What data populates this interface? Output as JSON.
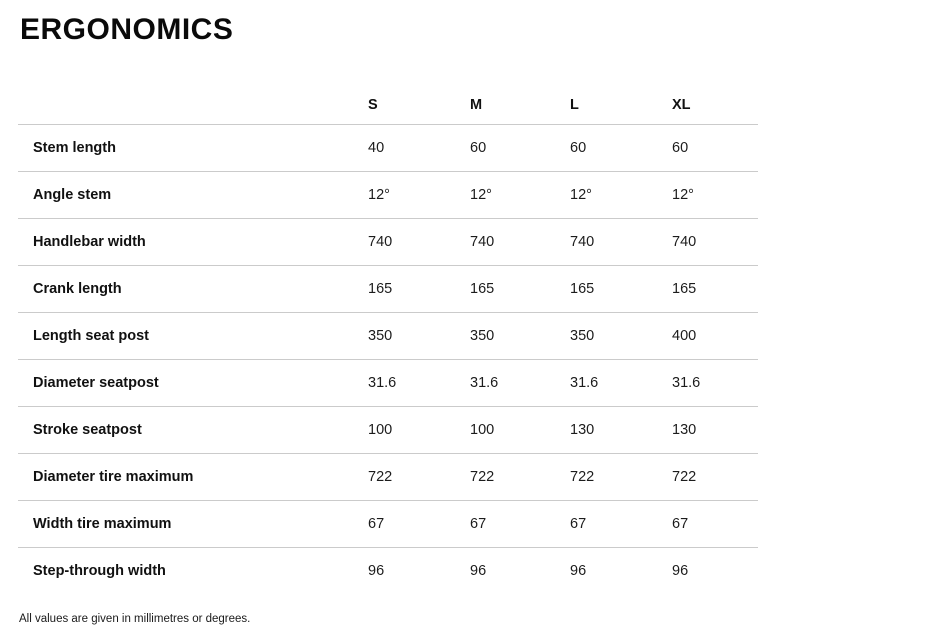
{
  "page": {
    "title": "ERGONOMICS",
    "footnote": "All values are given in millimetres or degrees."
  },
  "table": {
    "size_headers": [
      "S",
      "M",
      "L",
      "XL"
    ],
    "rows": [
      {
        "label": "Stem length",
        "values": [
          "40",
          "60",
          "60",
          "60"
        ]
      },
      {
        "label": "Angle stem",
        "values": [
          "12°",
          "12°",
          "12°",
          "12°"
        ]
      },
      {
        "label": "Handlebar width",
        "values": [
          "740",
          "740",
          "740",
          "740"
        ]
      },
      {
        "label": "Crank length",
        "values": [
          "165",
          "165",
          "165",
          "165"
        ]
      },
      {
        "label": "Length seat post",
        "values": [
          "350",
          "350",
          "350",
          "400"
        ]
      },
      {
        "label": "Diameter seatpost",
        "values": [
          "31.6",
          "31.6",
          "31.6",
          "31.6"
        ]
      },
      {
        "label": "Stroke seatpost",
        "values": [
          "100",
          "100",
          "130",
          "130"
        ]
      },
      {
        "label": "Diameter tire maximum",
        "values": [
          "722",
          "722",
          "722",
          "722"
        ]
      },
      {
        "label": "Width tire maximum",
        "values": [
          "67",
          "67",
          "67",
          "67"
        ]
      },
      {
        "label": "Step-through width",
        "values": [
          "96",
          "96",
          "96",
          "96"
        ]
      }
    ],
    "colors": {
      "divider": "#cbcbcb",
      "text": "#1a1a1a",
      "background": "#ffffff"
    }
  }
}
